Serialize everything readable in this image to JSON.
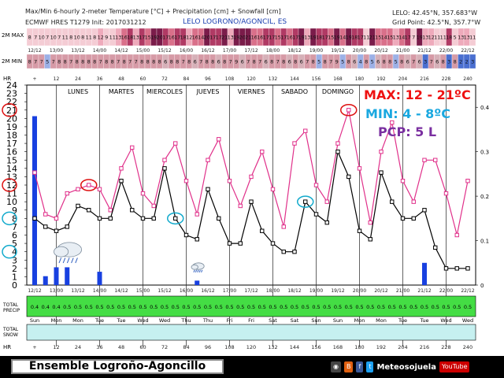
{
  "header": {
    "title_line1": "Max/Min 6-hourly 2-meter Temperature [°C] + Precipitation [cm] + Snowfall [cm]",
    "title_line2": "ECMWF HRES T1279 Init: 2017031212",
    "location": "LELO LOGRONO/AGONCIL, ES",
    "coords_line1": "LELO: 42.45°N, 357.683°W",
    "coords_line2": "Grid Point: 42.5°N, 357.7°W"
  },
  "row_labels": {
    "max": "2M MAX",
    "min": "2M MIN",
    "hr": "HR",
    "precip": [
      "TOTAL",
      "PRECIP"
    ],
    "snow": [
      "TOTAL",
      "SNOW"
    ]
  },
  "max_strip": [
    "8",
    "7",
    "10",
    "7",
    "10",
    "7",
    "11",
    "8",
    "10",
    "8",
    "11",
    "8",
    "12",
    "9",
    "11",
    "13",
    "16",
    "18",
    "13",
    "17",
    "15",
    "19",
    "20",
    "17",
    "16",
    "17",
    "18",
    "12",
    "16",
    "14",
    "20",
    "17",
    "17",
    "21",
    "13",
    "19",
    "20",
    "21",
    "16",
    "16",
    "17",
    "17",
    "15",
    "17",
    "16",
    "17",
    "19",
    "13",
    "19",
    "18",
    "17",
    "15",
    "19",
    "14",
    "19",
    "18",
    "17",
    "11",
    "21",
    "15",
    "14",
    "15",
    "13",
    "14",
    "17",
    "7",
    "19",
    "13",
    "12",
    "11",
    "11",
    "18",
    "5",
    "13",
    "13",
    "11"
  ],
  "min_strip": [
    "8",
    "7",
    "7",
    "5",
    "7",
    "8",
    "8",
    "7",
    "8",
    "8",
    "8",
    "8",
    "7",
    "8",
    "8",
    "7",
    "8",
    "7",
    "7",
    "8",
    "8",
    "8",
    "8",
    "6",
    "8",
    "8",
    "7",
    "8",
    "6",
    "7",
    "8",
    "8",
    "6",
    "8",
    "7",
    "9",
    "6",
    "7",
    "8",
    "7",
    "6",
    "8",
    "7",
    "8",
    "6",
    "8",
    "6",
    "7",
    "8",
    "5",
    "8",
    "7",
    "9",
    "5",
    "8",
    "6",
    "4",
    "8",
    "5",
    "6",
    "8",
    "8",
    "5",
    "8",
    "6",
    "7",
    "6",
    "3",
    "7",
    "6",
    "8",
    "3",
    "8",
    "2",
    "2",
    "3"
  ],
  "date_labels": [
    "12/12",
    "13/00",
    "13/12",
    "14/00",
    "14/12",
    "15/00",
    "15/12",
    "16/00",
    "16/12",
    "17/00",
    "17/12",
    "18/00",
    "18/12",
    "19/00",
    "19/12",
    "20/00",
    "20/12",
    "21/00",
    "21/12",
    "22/00",
    "22/12"
  ],
  "hr_labels": [
    "+",
    "12",
    "24",
    "36",
    "48",
    "60",
    "72",
    "84",
    "96",
    "108",
    "120",
    "132",
    "144",
    "156",
    "168",
    "180",
    "192",
    "204",
    "216",
    "228",
    "240"
  ],
  "dow_labels": [
    "Sun",
    "Mon",
    "Mon",
    "Tue",
    "Tue",
    "Wed",
    "Wed",
    "Thu",
    "Thu",
    "Fri",
    "Fri",
    "Sat",
    "Sat",
    "Sun",
    "Sun",
    "Mon",
    "Mon",
    "Tue",
    "Tue",
    "Wed",
    "Wed"
  ],
  "precip_strip": [
    "0.4",
    "0.4",
    "0.4",
    "0.5",
    "0.5",
    "0.5",
    "0.5",
    "0.5",
    "0.5",
    "0.5",
    "0.5",
    "0.5",
    "0.5",
    "0.5",
    "0.5",
    "0.5",
    "0.5",
    "0.5",
    "0.5",
    "0.5",
    "0.5",
    "0.5",
    "0.5",
    "0.5",
    "0.5",
    "0.5",
    "0.5",
    "0.5",
    "0.5",
    "0.5",
    "0.5",
    "0.5",
    "0.5",
    "0.5",
    "0.5",
    "0.5",
    "0.5",
    "0.5",
    "0.5",
    "0.5",
    "0.5"
  ],
  "day_names": [
    "LUNES",
    "MARTES",
    "MIERCOLES",
    "JUEVES",
    "VIERNES",
    "SABADO",
    "DOMINGO"
  ],
  "summary": {
    "max": "MAX: 12 - 21ºC",
    "min": "MIN: 4 - 8ºC",
    "pcp": "PCP: 5 L"
  },
  "footer": {
    "title": "Ensemble Logroño-Agoncillo",
    "brand": "Meteosojuela",
    "youtube": "YouTube"
  },
  "colors": {
    "max_line": "#e0308a",
    "min_line": "#000000",
    "bar": "#1840e0",
    "precip_row": "#44dd44",
    "snow_row": "#c6f0f0",
    "circle_red": "#dd1010",
    "circle_cyan": "#12aacc",
    "text_max": "#ee1111",
    "text_min": "#1aa8e0",
    "text_pcp": "#7a2fa0"
  },
  "chart_data": {
    "type": "line",
    "x_label": "",
    "x": [
      "12/12",
      "12/18",
      "13/00",
      "13/06",
      "13/12",
      "13/18",
      "14/00",
      "14/06",
      "14/12",
      "14/18",
      "15/00",
      "15/06",
      "15/12",
      "15/18",
      "16/00",
      "16/06",
      "16/12",
      "16/18",
      "17/00",
      "17/06",
      "17/12",
      "17/18",
      "18/00",
      "18/06",
      "18/12",
      "18/18",
      "19/00",
      "19/06",
      "19/12",
      "19/18",
      "20/00",
      "20/06",
      "20/12",
      "20/18",
      "21/00",
      "21/06",
      "21/12",
      "21/18",
      "22/00",
      "22/06",
      "22/12"
    ],
    "series": [
      {
        "name": "",
        "axis": "left",
        "values": [
          13.5,
          8.5,
          8.0,
          11.0,
          11.5,
          12.0,
          11.5,
          9.0,
          14.0,
          16.5,
          11.0,
          9.5,
          15.0,
          17.0,
          12.5,
          8.5,
          15.0,
          17.5,
          12.5,
          9.5,
          13.0,
          16.0,
          11.5,
          7.0,
          17.0,
          18.5,
          12.0,
          10.0,
          17.0,
          21.0,
          14.0,
          7.5,
          16.0,
          19.5,
          12.5,
          10.0,
          15.0,
          15.0,
          11.0,
          6.0,
          12.5
        ]
      },
      {
        "name": "",
        "axis": "left",
        "values": [
          8.0,
          7.0,
          6.5,
          7.0,
          9.5,
          9.0,
          8.0,
          8.0,
          12.5,
          9.0,
          8.0,
          8.0,
          14.0,
          8.0,
          6.0,
          5.5,
          11.5,
          8.0,
          5.0,
          5.0,
          10.0,
          6.5,
          5.0,
          4.0,
          4.0,
          10.0,
          8.5,
          7.5,
          16.0,
          13.0,
          6.5,
          5.5,
          13.5,
          10.0,
          8.0,
          8.0,
          9.0,
          4.5,
          2.0,
          2.0,
          2.0
        ]
      },
      {
        "name": "",
        "axis": "right",
        "type": "bar",
        "values": [
          0.38,
          0.02,
          0.04,
          0.04,
          0,
          0,
          0.03,
          0,
          0,
          0,
          0,
          0,
          0,
          0,
          0,
          0.01,
          0,
          0,
          0,
          0,
          0,
          0,
          0,
          0,
          0,
          0,
          0,
          0,
          0,
          0,
          0,
          0,
          0,
          0,
          0,
          0,
          0.05,
          0,
          0,
          0,
          0
        ]
      }
    ],
    "ylim_left": [
      0,
      24
    ],
    "yticks_left": [
      0,
      1,
      2,
      3,
      4,
      5,
      6,
      7,
      8,
      9,
      10,
      11,
      12,
      13,
      14,
      15,
      16,
      17,
      18,
      19,
      20,
      21,
      22,
      23,
      24
    ],
    "ylim_right": [
      0,
      0.45
    ],
    "yticks_right": [
      0,
      0.1,
      0.2,
      0.3,
      0.4
    ],
    "circled_values": [
      21,
      12,
      8,
      4
    ],
    "grid": false
  }
}
